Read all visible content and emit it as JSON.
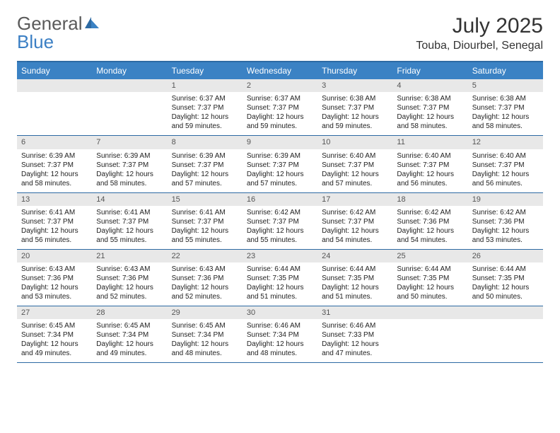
{
  "logo": {
    "text1": "General",
    "text2": "Blue"
  },
  "title": "July 2025",
  "location": "Touba, Diourbel, Senegal",
  "colors": {
    "header_bg": "#3b82c4",
    "border": "#2d6aa3",
    "daynum_bg": "#e8e8e8",
    "text": "#222222",
    "logo_gray": "#5a5a5a"
  },
  "day_names": [
    "Sunday",
    "Monday",
    "Tuesday",
    "Wednesday",
    "Thursday",
    "Friday",
    "Saturday"
  ],
  "weeks": [
    [
      null,
      null,
      {
        "n": "1",
        "sr": "Sunrise: 6:37 AM",
        "ss": "Sunset: 7:37 PM",
        "d1": "Daylight: 12 hours",
        "d2": "and 59 minutes."
      },
      {
        "n": "2",
        "sr": "Sunrise: 6:37 AM",
        "ss": "Sunset: 7:37 PM",
        "d1": "Daylight: 12 hours",
        "d2": "and 59 minutes."
      },
      {
        "n": "3",
        "sr": "Sunrise: 6:38 AM",
        "ss": "Sunset: 7:37 PM",
        "d1": "Daylight: 12 hours",
        "d2": "and 59 minutes."
      },
      {
        "n": "4",
        "sr": "Sunrise: 6:38 AM",
        "ss": "Sunset: 7:37 PM",
        "d1": "Daylight: 12 hours",
        "d2": "and 58 minutes."
      },
      {
        "n": "5",
        "sr": "Sunrise: 6:38 AM",
        "ss": "Sunset: 7:37 PM",
        "d1": "Daylight: 12 hours",
        "d2": "and 58 minutes."
      }
    ],
    [
      {
        "n": "6",
        "sr": "Sunrise: 6:39 AM",
        "ss": "Sunset: 7:37 PM",
        "d1": "Daylight: 12 hours",
        "d2": "and 58 minutes."
      },
      {
        "n": "7",
        "sr": "Sunrise: 6:39 AM",
        "ss": "Sunset: 7:37 PM",
        "d1": "Daylight: 12 hours",
        "d2": "and 58 minutes."
      },
      {
        "n": "8",
        "sr": "Sunrise: 6:39 AM",
        "ss": "Sunset: 7:37 PM",
        "d1": "Daylight: 12 hours",
        "d2": "and 57 minutes."
      },
      {
        "n": "9",
        "sr": "Sunrise: 6:39 AM",
        "ss": "Sunset: 7:37 PM",
        "d1": "Daylight: 12 hours",
        "d2": "and 57 minutes."
      },
      {
        "n": "10",
        "sr": "Sunrise: 6:40 AM",
        "ss": "Sunset: 7:37 PM",
        "d1": "Daylight: 12 hours",
        "d2": "and 57 minutes."
      },
      {
        "n": "11",
        "sr": "Sunrise: 6:40 AM",
        "ss": "Sunset: 7:37 PM",
        "d1": "Daylight: 12 hours",
        "d2": "and 56 minutes."
      },
      {
        "n": "12",
        "sr": "Sunrise: 6:40 AM",
        "ss": "Sunset: 7:37 PM",
        "d1": "Daylight: 12 hours",
        "d2": "and 56 minutes."
      }
    ],
    [
      {
        "n": "13",
        "sr": "Sunrise: 6:41 AM",
        "ss": "Sunset: 7:37 PM",
        "d1": "Daylight: 12 hours",
        "d2": "and 56 minutes."
      },
      {
        "n": "14",
        "sr": "Sunrise: 6:41 AM",
        "ss": "Sunset: 7:37 PM",
        "d1": "Daylight: 12 hours",
        "d2": "and 55 minutes."
      },
      {
        "n": "15",
        "sr": "Sunrise: 6:41 AM",
        "ss": "Sunset: 7:37 PM",
        "d1": "Daylight: 12 hours",
        "d2": "and 55 minutes."
      },
      {
        "n": "16",
        "sr": "Sunrise: 6:42 AM",
        "ss": "Sunset: 7:37 PM",
        "d1": "Daylight: 12 hours",
        "d2": "and 55 minutes."
      },
      {
        "n": "17",
        "sr": "Sunrise: 6:42 AM",
        "ss": "Sunset: 7:37 PM",
        "d1": "Daylight: 12 hours",
        "d2": "and 54 minutes."
      },
      {
        "n": "18",
        "sr": "Sunrise: 6:42 AM",
        "ss": "Sunset: 7:36 PM",
        "d1": "Daylight: 12 hours",
        "d2": "and 54 minutes."
      },
      {
        "n": "19",
        "sr": "Sunrise: 6:42 AM",
        "ss": "Sunset: 7:36 PM",
        "d1": "Daylight: 12 hours",
        "d2": "and 53 minutes."
      }
    ],
    [
      {
        "n": "20",
        "sr": "Sunrise: 6:43 AM",
        "ss": "Sunset: 7:36 PM",
        "d1": "Daylight: 12 hours",
        "d2": "and 53 minutes."
      },
      {
        "n": "21",
        "sr": "Sunrise: 6:43 AM",
        "ss": "Sunset: 7:36 PM",
        "d1": "Daylight: 12 hours",
        "d2": "and 52 minutes."
      },
      {
        "n": "22",
        "sr": "Sunrise: 6:43 AM",
        "ss": "Sunset: 7:36 PM",
        "d1": "Daylight: 12 hours",
        "d2": "and 52 minutes."
      },
      {
        "n": "23",
        "sr": "Sunrise: 6:44 AM",
        "ss": "Sunset: 7:35 PM",
        "d1": "Daylight: 12 hours",
        "d2": "and 51 minutes."
      },
      {
        "n": "24",
        "sr": "Sunrise: 6:44 AM",
        "ss": "Sunset: 7:35 PM",
        "d1": "Daylight: 12 hours",
        "d2": "and 51 minutes."
      },
      {
        "n": "25",
        "sr": "Sunrise: 6:44 AM",
        "ss": "Sunset: 7:35 PM",
        "d1": "Daylight: 12 hours",
        "d2": "and 50 minutes."
      },
      {
        "n": "26",
        "sr": "Sunrise: 6:44 AM",
        "ss": "Sunset: 7:35 PM",
        "d1": "Daylight: 12 hours",
        "d2": "and 50 minutes."
      }
    ],
    [
      {
        "n": "27",
        "sr": "Sunrise: 6:45 AM",
        "ss": "Sunset: 7:34 PM",
        "d1": "Daylight: 12 hours",
        "d2": "and 49 minutes."
      },
      {
        "n": "28",
        "sr": "Sunrise: 6:45 AM",
        "ss": "Sunset: 7:34 PM",
        "d1": "Daylight: 12 hours",
        "d2": "and 49 minutes."
      },
      {
        "n": "29",
        "sr": "Sunrise: 6:45 AM",
        "ss": "Sunset: 7:34 PM",
        "d1": "Daylight: 12 hours",
        "d2": "and 48 minutes."
      },
      {
        "n": "30",
        "sr": "Sunrise: 6:46 AM",
        "ss": "Sunset: 7:34 PM",
        "d1": "Daylight: 12 hours",
        "d2": "and 48 minutes."
      },
      {
        "n": "31",
        "sr": "Sunrise: 6:46 AM",
        "ss": "Sunset: 7:33 PM",
        "d1": "Daylight: 12 hours",
        "d2": "and 47 minutes."
      },
      null,
      null
    ]
  ]
}
